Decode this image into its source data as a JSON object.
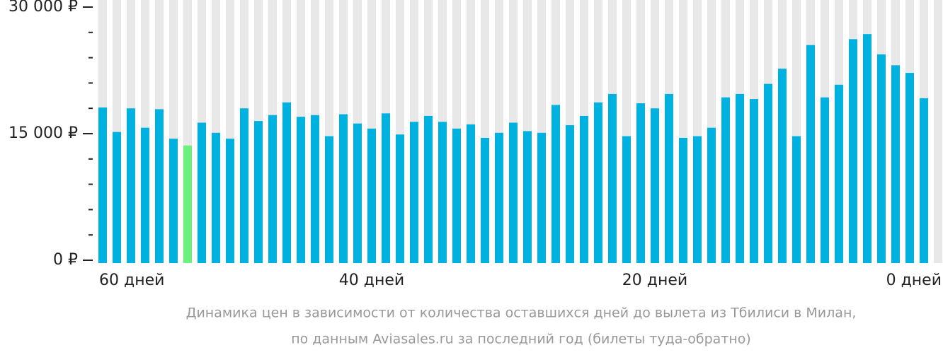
{
  "chart_data": {
    "type": "bar",
    "categories": [
      "60 дней",
      null,
      null,
      null,
      null,
      null,
      null,
      null,
      null,
      null,
      null,
      null,
      null,
      null,
      null,
      null,
      null,
      null,
      null,
      "40 дней",
      null,
      null,
      null,
      null,
      null,
      null,
      null,
      null,
      null,
      null,
      null,
      null,
      null,
      null,
      null,
      null,
      null,
      null,
      null,
      "20 дней",
      null,
      null,
      null,
      null,
      null,
      null,
      null,
      null,
      null,
      null,
      null,
      null,
      null,
      null,
      null,
      null,
      null,
      null,
      null,
      "0 дней"
    ],
    "values": [
      18100,
      15200,
      18000,
      15700,
      17900,
      14400,
      13600,
      16300,
      15100,
      14400,
      18000,
      16500,
      17200,
      18700,
      17000,
      17200,
      14700,
      17300,
      16200,
      15600,
      17400,
      14900,
      16400,
      17100,
      16400,
      15600,
      16100,
      14500,
      15100,
      16300,
      15300,
      15100,
      18400,
      16000,
      17100,
      18700,
      19700,
      14700,
      18600,
      18000,
      19700,
      14500,
      14700,
      15700,
      19300,
      19700,
      19100,
      20900,
      22700,
      14700,
      25500,
      19300,
      20800,
      26200,
      26800,
      24400,
      23100,
      22200,
      19200,
      null
    ],
    "color": "#00b0de",
    "min_color": "#6cf07e",
    "column_color": "#e8e8e8",
    "ylim": [
      0,
      30000
    ],
    "yticks": [
      {
        "value": 0,
        "label": "0 ₽"
      },
      {
        "value": 15000,
        "label": "15 000 ₽"
      },
      {
        "value": 30000,
        "label": "30 000 ₽"
      }
    ],
    "yticks_minor": [
      3000,
      6000,
      9000,
      12000,
      18000,
      21000,
      24000,
      27000
    ],
    "caption": [
      "Динамика цен в зависимости от количества оставшихся дней до вылета из Тбилиси в Милан,",
      "по данным Aviasales.ru за последний год (билеты туда-обратно)"
    ]
  }
}
